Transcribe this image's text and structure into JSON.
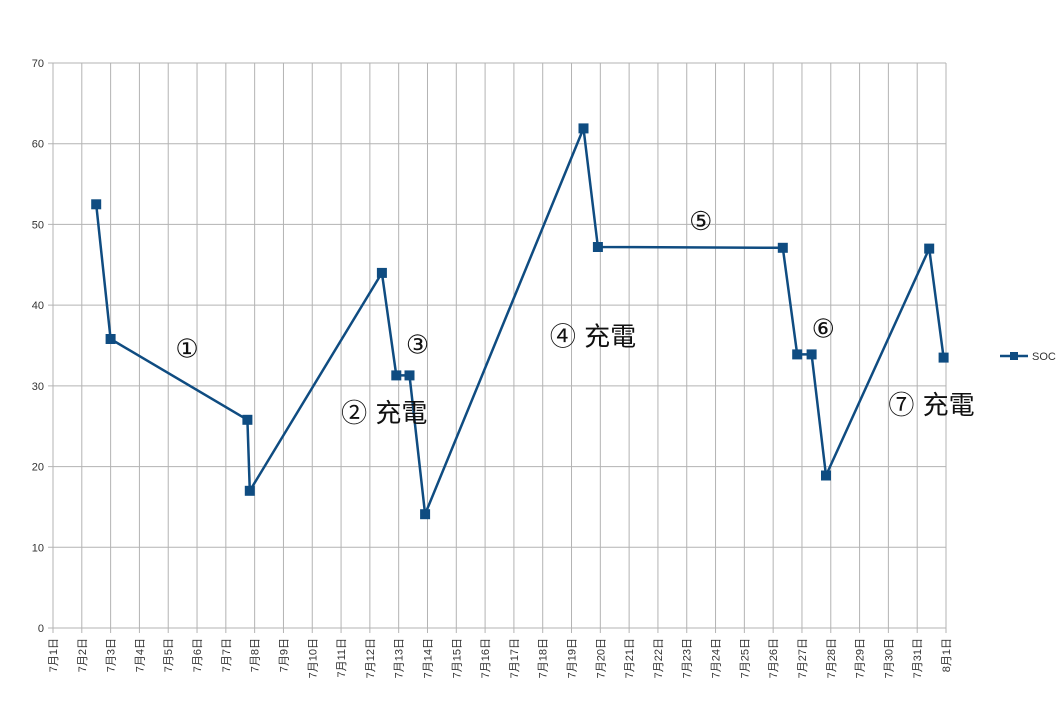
{
  "chart_data": {
    "type": "line",
    "title": "",
    "xlabel": "",
    "ylabel": "",
    "ylim": [
      0,
      70
    ],
    "y_ticks": [
      0,
      10,
      20,
      30,
      40,
      50,
      60,
      70
    ],
    "x_ticks": [
      "7月1日",
      "7月2日",
      "7月3日",
      "7月4日",
      "7月5日",
      "7月6日",
      "7月7日",
      "7月8日",
      "7月9日",
      "7月10日",
      "7月11日",
      "7月12日",
      "7月13日",
      "7月14日",
      "7月15日",
      "7月16日",
      "7月17日",
      "7月18日",
      "7月19日",
      "7月20日",
      "7月21日",
      "7月22日",
      "7月23日",
      "7月24日",
      "7月25日",
      "7月26日",
      "7月27日",
      "7月28日",
      "7月29日",
      "7月30日",
      "7月31日",
      "8月1日"
    ],
    "x_range": [
      "7月1日",
      "8月1日"
    ],
    "grid": true,
    "legend_position": "right",
    "series": [
      {
        "name": "SOC",
        "color": "#0f4c81",
        "marker": "square",
        "x": [
          "7月2日 12:00",
          "7月3日 00:00",
          "7月7日 18:00",
          "7月7日 20:00",
          "7月12日 10:00",
          "7月12日 22:00",
          "7月13日 09:00",
          "7月13日 22:00",
          "7月19日 10:00",
          "7月19日 22:00",
          "7月26日 08:00",
          "7月26日 20:00",
          "7月27日 08:00",
          "7月27日 20:00",
          "7月31日 10:00",
          "7月31日 22:00"
        ],
        "values": [
          52.5,
          35.8,
          25.8,
          17.0,
          44.0,
          31.3,
          31.3,
          14.1,
          61.9,
          47.2,
          47.1,
          33.9,
          33.9,
          18.9,
          47.0,
          33.5
        ]
      }
    ],
    "annotations": [
      {
        "text": "①",
        "x": "7月5日 06:00",
        "y": 33.5
      },
      {
        "text": "② 充電",
        "x": "7月11日 00:00",
        "y": 25.5
      },
      {
        "text": "③",
        "x": "7月13日 06:00",
        "y": 34.0
      },
      {
        "text": "④ 充電",
        "x": "7月18日 06:00",
        "y": 35.0
      },
      {
        "text": "⑤",
        "x": "7月23日 02:00",
        "y": 49.3
      },
      {
        "text": "⑥",
        "x": "7月27日 08:00",
        "y": 36.0
      },
      {
        "text": "⑦ 充電",
        "x": "7月30日 00:00",
        "y": 26.5
      }
    ]
  }
}
